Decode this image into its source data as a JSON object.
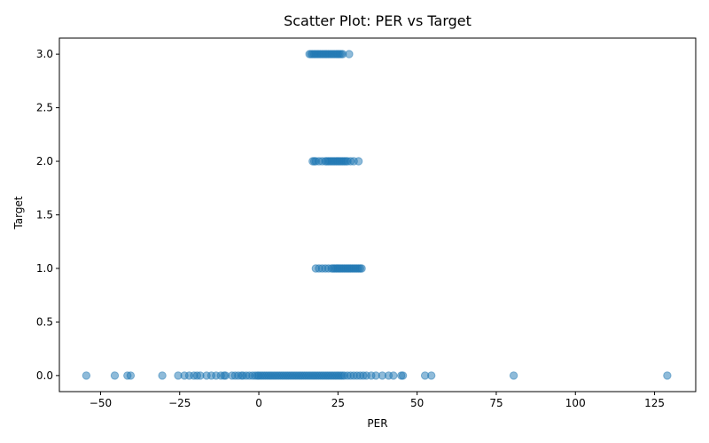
{
  "chart_data": {
    "type": "scatter",
    "title": "Scatter Plot: PER vs Target",
    "xlabel": "PER",
    "ylabel": "Target",
    "xlim": [
      -63,
      138
    ],
    "ylim": [
      -0.15,
      3.15
    ],
    "xticks": [
      -50,
      -25,
      0,
      25,
      50,
      75,
      100,
      125
    ],
    "xtick_labels": [
      "−50",
      "−25",
      "0",
      "25",
      "50",
      "75",
      "100",
      "125"
    ],
    "yticks": [
      0.0,
      0.5,
      1.0,
      1.5,
      2.0,
      2.5,
      3.0
    ],
    "ytick_labels": [
      "0.0",
      "0.5",
      "1.0",
      "1.5",
      "2.0",
      "2.5",
      "3.0"
    ],
    "grid": false,
    "legend": "none",
    "colors": {
      "marker": "#1f77b4",
      "axes": "#000000"
    },
    "marker_alpha": 0.5,
    "series": [
      {
        "x": [
          -54.5,
          -45.5,
          -41.5,
          -40.5,
          -30.5,
          -25.5,
          -23.5,
          -22,
          -20.5,
          -19.5,
          -18.5,
          -16.5,
          -15,
          -13.5,
          -12,
          -11,
          -10.5,
          -8.5,
          -7.5,
          -6.5,
          -5.5,
          -5,
          -4,
          -3,
          -2,
          -1.2,
          -0.5,
          0,
          0.6,
          1.2,
          1.8,
          2.4,
          3,
          3.6,
          4.2,
          4.8,
          5.4,
          6,
          6.6,
          7.2,
          7.8,
          8.4,
          9,
          9.6,
          10.2,
          10.8,
          11.4,
          12,
          12.6,
          13.2,
          13.8,
          14.4,
          15,
          15.6,
          16.2,
          16.8,
          17.4,
          18,
          18.6,
          19.2,
          19.8,
          20.4,
          21,
          21.6,
          22.2,
          22.8,
          23.4,
          24,
          24.6,
          25.2,
          25.8,
          26.4,
          27,
          28,
          29,
          30,
          31,
          32,
          33,
          34,
          35.5,
          37,
          39,
          41,
          42.5,
          45,
          45.5,
          52.5,
          54.5,
          80.5,
          129,
          18,
          19,
          20,
          21,
          22,
          23,
          23.5,
          24,
          24.5,
          25,
          25.5,
          26,
          26.5,
          27,
          27.5,
          28,
          28.5,
          29,
          29.5,
          30,
          30.5,
          31,
          31.5,
          32,
          32.5,
          17,
          17.5,
          18,
          19,
          20,
          21,
          21.5,
          22,
          22.5,
          23,
          23.5,
          24,
          24.5,
          25,
          25.5,
          26,
          26.5,
          27,
          27.5,
          28,
          29,
          30,
          31.5,
          16,
          16.5,
          17,
          17.5,
          18,
          18.5,
          19,
          19.5,
          20,
          20.5,
          21,
          21.5,
          22,
          22.5,
          23,
          23.5,
          24,
          24.5,
          25,
          25.5,
          26,
          26.5,
          28.5
        ],
        "y": [
          0,
          0,
          0,
          0,
          0,
          0,
          0,
          0,
          0,
          0,
          0,
          0,
          0,
          0,
          0,
          0,
          0,
          0,
          0,
          0,
          0,
          0,
          0,
          0,
          0,
          0,
          0,
          0,
          0,
          0,
          0,
          0,
          0,
          0,
          0,
          0,
          0,
          0,
          0,
          0,
          0,
          0,
          0,
          0,
          0,
          0,
          0,
          0,
          0,
          0,
          0,
          0,
          0,
          0,
          0,
          0,
          0,
          0,
          0,
          0,
          0,
          0,
          0,
          0,
          0,
          0,
          0,
          0,
          0,
          0,
          0,
          0,
          0,
          0,
          0,
          0,
          0,
          0,
          0,
          0,
          0,
          0,
          0,
          0,
          0,
          0,
          0,
          0,
          0,
          0,
          0,
          1,
          1,
          1,
          1,
          1,
          1,
          1,
          1,
          1,
          1,
          1,
          1,
          1,
          1,
          1,
          1,
          1,
          1,
          1,
          1,
          1,
          1,
          1,
          1,
          1,
          2,
          2,
          2,
          2,
          2,
          2,
          2,
          2,
          2,
          2,
          2,
          2,
          2,
          2,
          2,
          2,
          2,
          2,
          2,
          2,
          2,
          2,
          2,
          3,
          3,
          3,
          3,
          3,
          3,
          3,
          3,
          3,
          3,
          3,
          3,
          3,
          3,
          3,
          3,
          3,
          3,
          3,
          3,
          3,
          3,
          3
        ]
      }
    ]
  }
}
